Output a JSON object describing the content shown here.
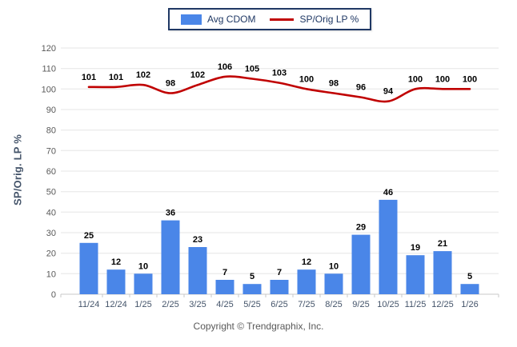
{
  "legend": {
    "items": [
      {
        "label": "Avg CDOM",
        "type": "bar",
        "color": "#4a86e8"
      },
      {
        "label": "SP/Orig LP %",
        "type": "line",
        "color": "#c00000"
      }
    ]
  },
  "footer": {
    "copyright": "Copyright © Trendgraphix, Inc."
  },
  "colors": {
    "bar": "#4a86e8",
    "line": "#c00000",
    "grid": "#e6e6e6",
    "axis": "#c9c9c9",
    "tick_label": "#595959",
    "x_label": "#44546a",
    "data_label": "#000000",
    "legend_border": "#1f3864"
  },
  "chart_data": {
    "type": "combo",
    "title": "",
    "xlabel": "",
    "ylabel": "SP/Orig. LP %",
    "categories": [
      "11/24",
      "12/24",
      "1/25",
      "2/25",
      "3/25",
      "4/25",
      "5/25",
      "6/25",
      "7/25",
      "8/25",
      "9/25",
      "10/25",
      "11/25",
      "12/25",
      "1/26"
    ],
    "series": [
      {
        "name": "Avg CDOM",
        "type": "bar",
        "color": "#4a86e8",
        "values": [
          25,
          12,
          10,
          36,
          23,
          7,
          5,
          7,
          12,
          10,
          29,
          46,
          19,
          21,
          5
        ]
      },
      {
        "name": "SP/Orig LP %",
        "type": "line",
        "color": "#c00000",
        "values": [
          101,
          101,
          102,
          98,
          102,
          106,
          105,
          103,
          100,
          98,
          96,
          94,
          100,
          100,
          100
        ]
      }
    ],
    "ylim": [
      0,
      120
    ],
    "ytick_step": 10,
    "grid": true,
    "legend_position": "top"
  }
}
